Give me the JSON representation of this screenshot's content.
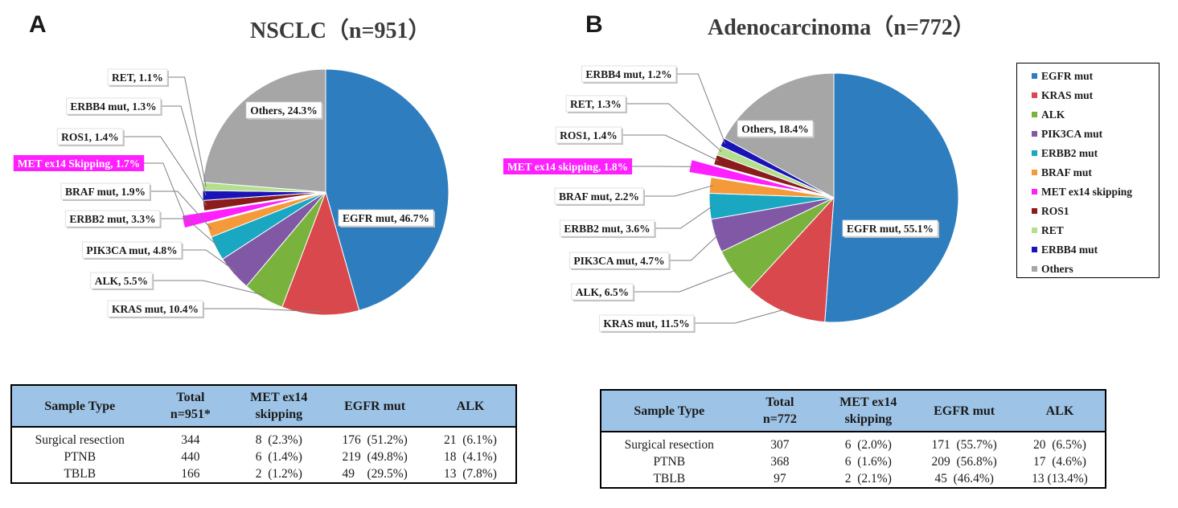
{
  "panels": {
    "a": {
      "letter": "A"
    },
    "b": {
      "letter": "B"
    }
  },
  "legend": {
    "items": [
      {
        "label": "EGFR mut",
        "color": "#2e7ebf"
      },
      {
        "label": "KRAS mut",
        "color": "#d9484c"
      },
      {
        "label": "ALK",
        "color": "#79b33e"
      },
      {
        "label": "PIK3CA mut",
        "color": "#8058a6"
      },
      {
        "label": "ERBB2 mut",
        "color": "#19a7c1"
      },
      {
        "label": "BRAF mut",
        "color": "#f59a3b"
      },
      {
        "label": "MET ex14 skipping",
        "color": "#ff1fff"
      },
      {
        "label": "ROS1",
        "color": "#8a1c1c"
      },
      {
        "label": "RET",
        "color": "#b4df8f"
      },
      {
        "label": "ERBB4 mut",
        "color": "#1a14b8"
      },
      {
        "label": "Others",
        "color": "#a6a6a6"
      }
    ]
  },
  "chart_data": [
    {
      "type": "pie",
      "title": "NSCLC（n=951）",
      "start": "12 o'clock, clockwise",
      "slices": [
        {
          "name": "EGFR mut",
          "value": 46.7,
          "label": "EGFR mut, 46.7%",
          "color": "#2e7ebf"
        },
        {
          "name": "KRAS mut",
          "value": 10.4,
          "label": "KRAS mut, 10.4%",
          "color": "#d9484c"
        },
        {
          "name": "ALK",
          "value": 5.5,
          "label": "ALK,  5.5%",
          "color": "#79b33e"
        },
        {
          "name": "PIK3CA mut",
          "value": 4.8,
          "label": "PIK3CA  mut, 4.8%",
          "color": "#8058a6"
        },
        {
          "name": "ERBB2 mut",
          "value": 3.3,
          "label": "ERBB2  mut, 3.3%",
          "color": "#19a7c1"
        },
        {
          "name": "BRAF mut",
          "value": 1.9,
          "label": "BRAF mut, 1.9%",
          "color": "#f59a3b"
        },
        {
          "name": "MET ex14 skipping",
          "value": 1.7,
          "label": "MET  ex14 Skipping, 1.7%",
          "color": "#ff1fff",
          "exploded": true
        },
        {
          "name": "ROS1",
          "value": 1.4,
          "label": "ROS1, 1.4%",
          "color": "#8a1c1c"
        },
        {
          "name": "ERBB4 mut",
          "value": 1.3,
          "label": "ERBB4  mut, 1.3%",
          "color": "#1a14b8"
        },
        {
          "name": "RET",
          "value": 1.1,
          "label": "RET,  1.1%",
          "color": "#b4df8f"
        },
        {
          "name": "Others",
          "value": 24.3,
          "label": "Others, 24.3%",
          "color": "#a6a6a6"
        }
      ]
    },
    {
      "type": "pie",
      "title": "Adenocarcinoma（n=772）",
      "start": "12 o'clock, clockwise",
      "slices": [
        {
          "name": "EGFR mut",
          "value": 55.1,
          "label": "EGFR mut, 55.1%",
          "color": "#2e7ebf"
        },
        {
          "name": "KRAS mut",
          "value": 11.5,
          "label": "KRAS mut, 11.5%",
          "color": "#d9484c"
        },
        {
          "name": "ALK",
          "value": 6.5,
          "label": "ALK,  6.5%",
          "color": "#79b33e"
        },
        {
          "name": "PIK3CA mut",
          "value": 4.7,
          "label": "PIK3CA  mut, 4.7%",
          "color": "#8058a6"
        },
        {
          "name": "ERBB2 mut",
          "value": 3.6,
          "label": "ERBB2  mut, 3.6%",
          "color": "#19a7c1"
        },
        {
          "name": "BRAF mut",
          "value": 2.2,
          "label": "BRAF  mut, 2.2%",
          "color": "#f59a3b"
        },
        {
          "name": "MET ex14 skipping",
          "value": 1.8,
          "label": "MET  ex14 skipping, 1.8%",
          "color": "#ff1fff",
          "exploded": true
        },
        {
          "name": "ROS1",
          "value": 1.4,
          "label": "ROS1, 1.4%",
          "color": "#8a1c1c"
        },
        {
          "name": "RET",
          "value": 1.3,
          "label": "RET,  1.3%",
          "color": "#b4df8f"
        },
        {
          "name": "ERBB4 mut",
          "value": 1.2,
          "label": "ERBB4  mut, 1.2%",
          "color": "#1a14b8"
        },
        {
          "name": "Others",
          "value": 18.4,
          "label": "Others, 18.4%",
          "color": "#a6a6a6"
        }
      ]
    },
    {
      "type": "table",
      "columns": [
        "Sample Type",
        [
          "Total",
          "n=951*"
        ],
        [
          "MET ex14",
          "skipping"
        ],
        "EGFR mut",
        "ALK"
      ],
      "rows": [
        [
          "Surgical resection",
          "344",
          "8  (2.3%)",
          "176  (51.2%)",
          "21  (6.1%)"
        ],
        [
          "PTNB",
          "440",
          "6  (1.4%)",
          "219  (49.8%)",
          "18  (4.1%)"
        ],
        [
          "TBLB",
          "166",
          "2  (1.2%)",
          "49    (29.5%)",
          "13  (7.8%)"
        ]
      ]
    },
    {
      "type": "table",
      "columns": [
        "Sample Type",
        [
          "Total",
          "n=772"
        ],
        [
          "MET ex14",
          "skipping"
        ],
        "EGFR mut",
        "ALK"
      ],
      "rows": [
        [
          "Surgical resection",
          "307",
          "6  (2.0%)",
          "171  (55.7%)",
          "20  (6.5%)"
        ],
        [
          "PTNB",
          "368",
          "6  (1.6%)",
          "209  (56.8%)",
          "17  (4.6%)"
        ],
        [
          "TBLB",
          "97",
          "2  (2.1%)",
          "45  (46.4%)",
          "13 (13.4%)"
        ]
      ]
    }
  ]
}
